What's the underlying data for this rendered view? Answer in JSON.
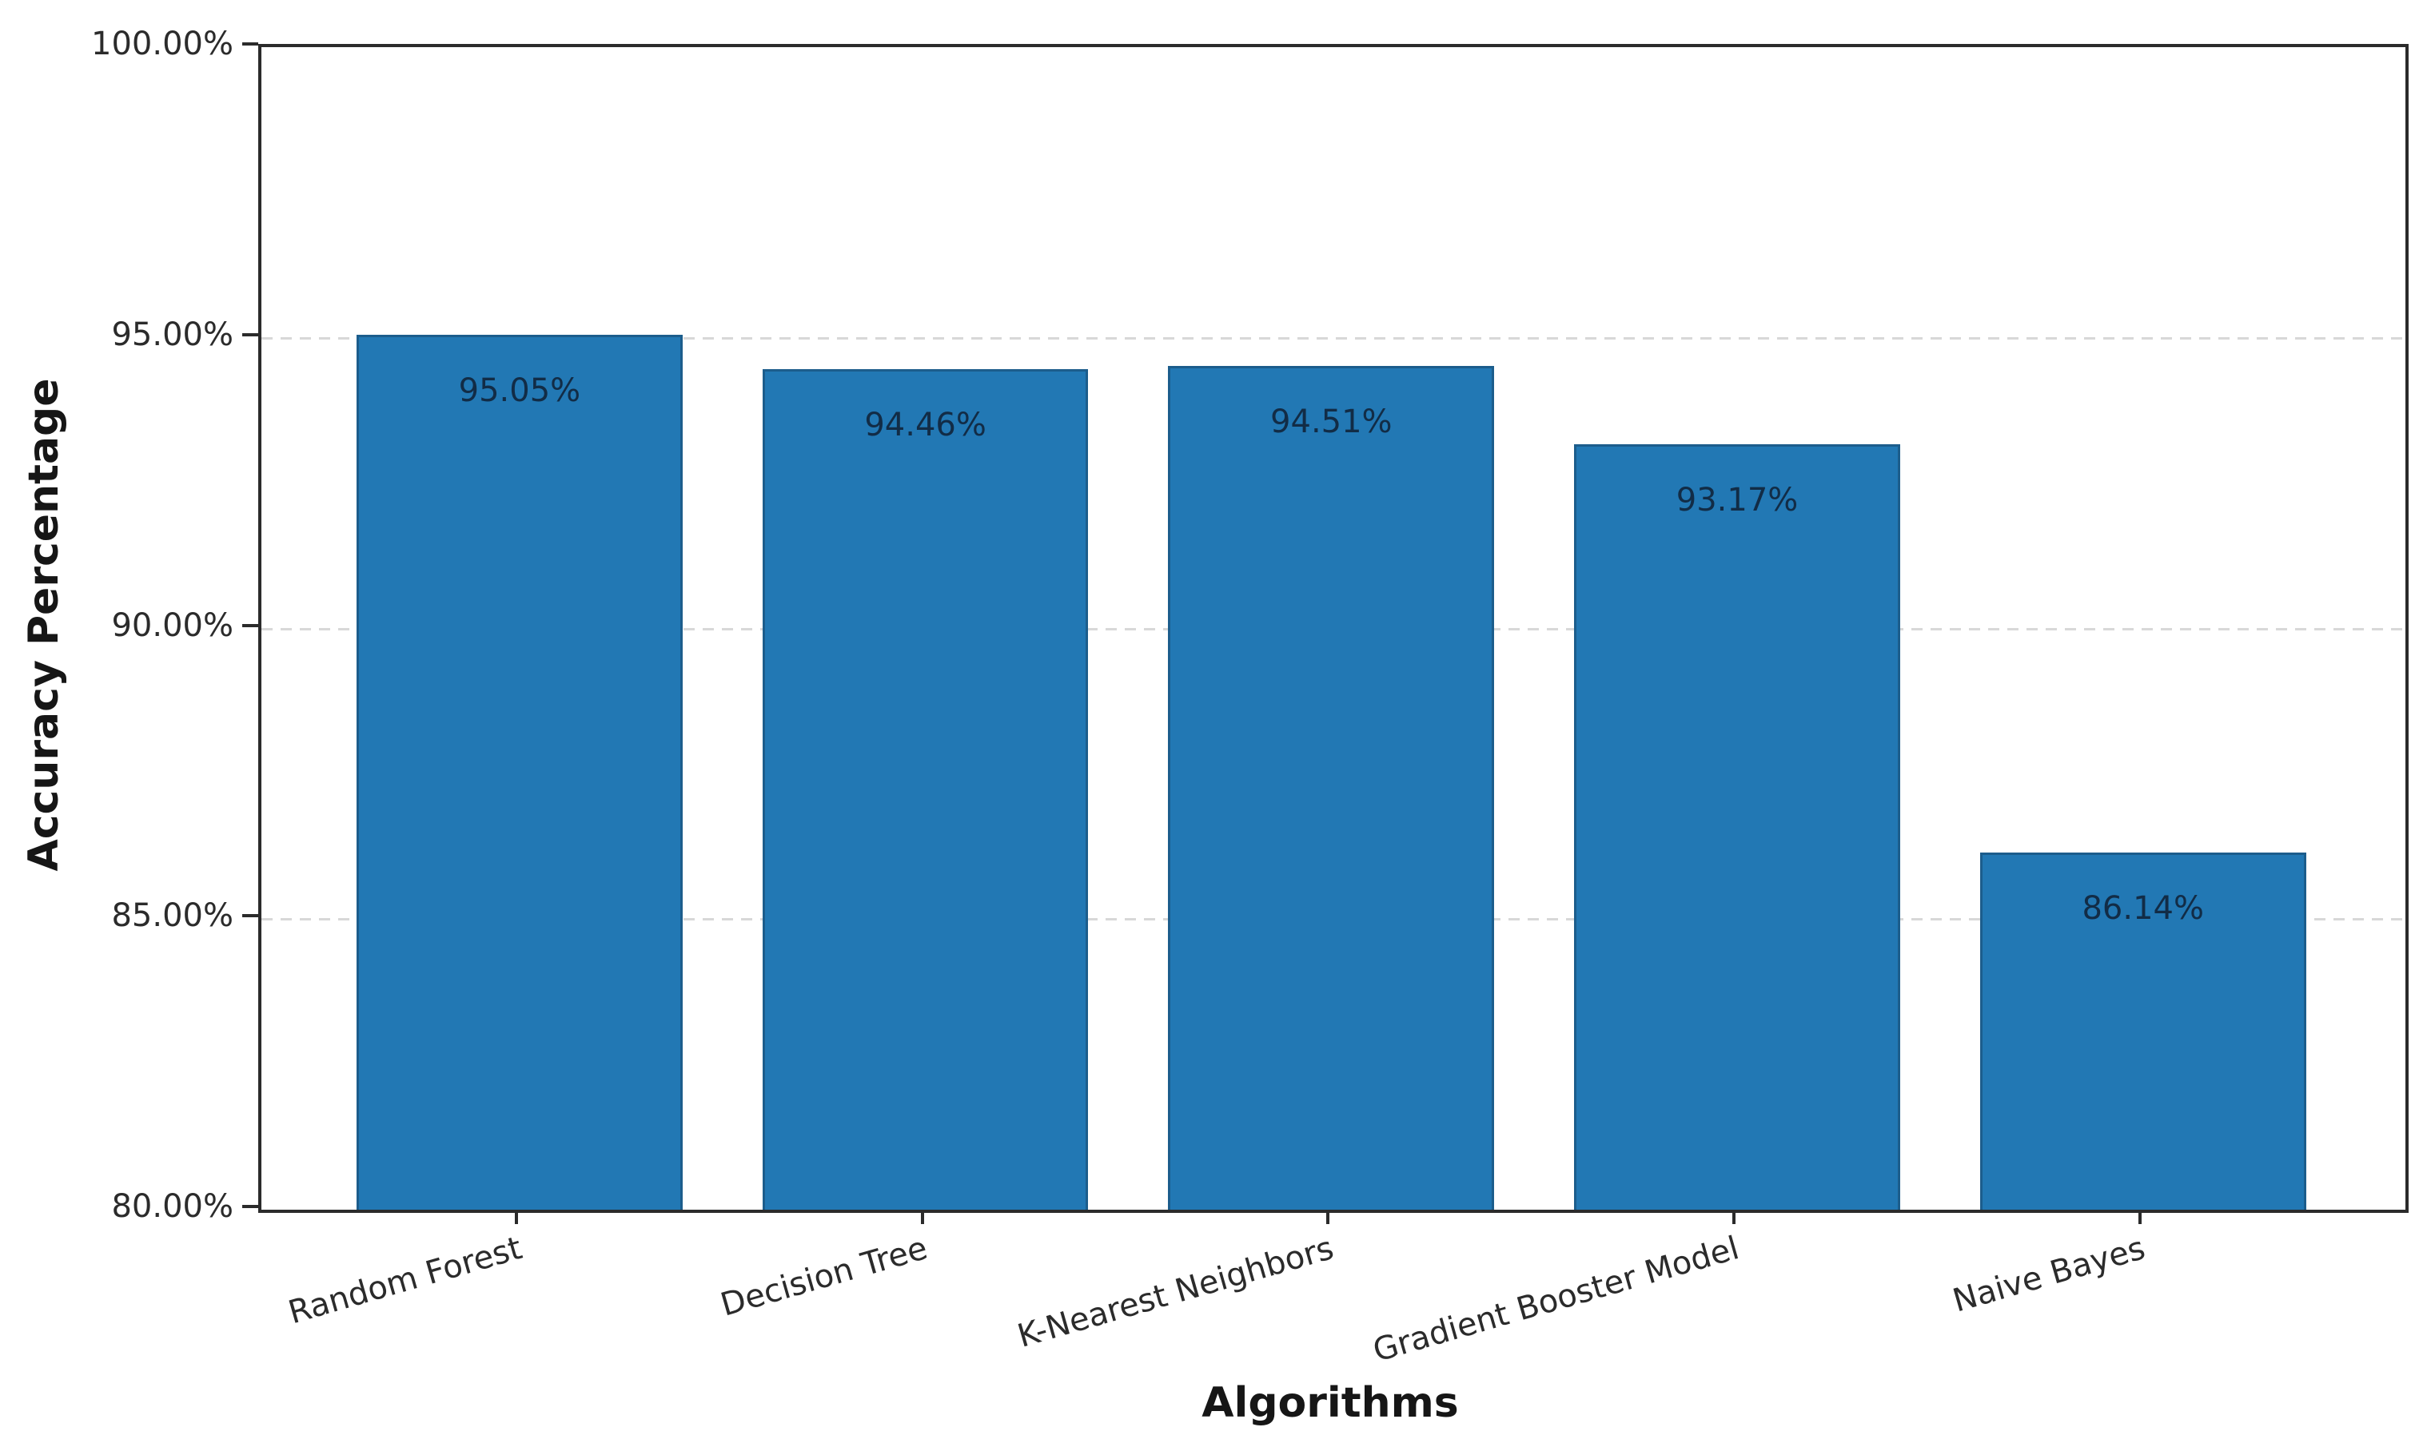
{
  "chart_data": {
    "type": "bar",
    "title": "",
    "xlabel": "Algorithms",
    "ylabel": "Accuracy Percentage",
    "categories": [
      "Random Forest",
      "Decision Tree",
      "K-Nearest Neighbors",
      "Gradient Booster Model",
      "Naive Bayes"
    ],
    "values": [
      95.05,
      94.46,
      94.51,
      93.17,
      86.14
    ],
    "bar_labels": [
      "95.05%",
      "94.46%",
      "94.51%",
      "93.17%",
      "86.14%"
    ],
    "ylim": [
      80,
      100
    ],
    "ytick_values": [
      100,
      95,
      90,
      85,
      80
    ],
    "ytick_labels": [
      "100.00%",
      "95.00%",
      "90.00%",
      "85.00%",
      "80.00%"
    ],
    "grid": "horizontal-dashed",
    "legend_position": "none",
    "colors": {
      "bar_fill": "#2278b4",
      "bar_edge": "#1c5d8c",
      "bar_label_text": "#122c46",
      "axis_text": "#2b2b2b",
      "title_text": "#161616",
      "gridline": "#d8d8d8",
      "spine": "#2b2b2b",
      "background": "#ffffff"
    }
  }
}
